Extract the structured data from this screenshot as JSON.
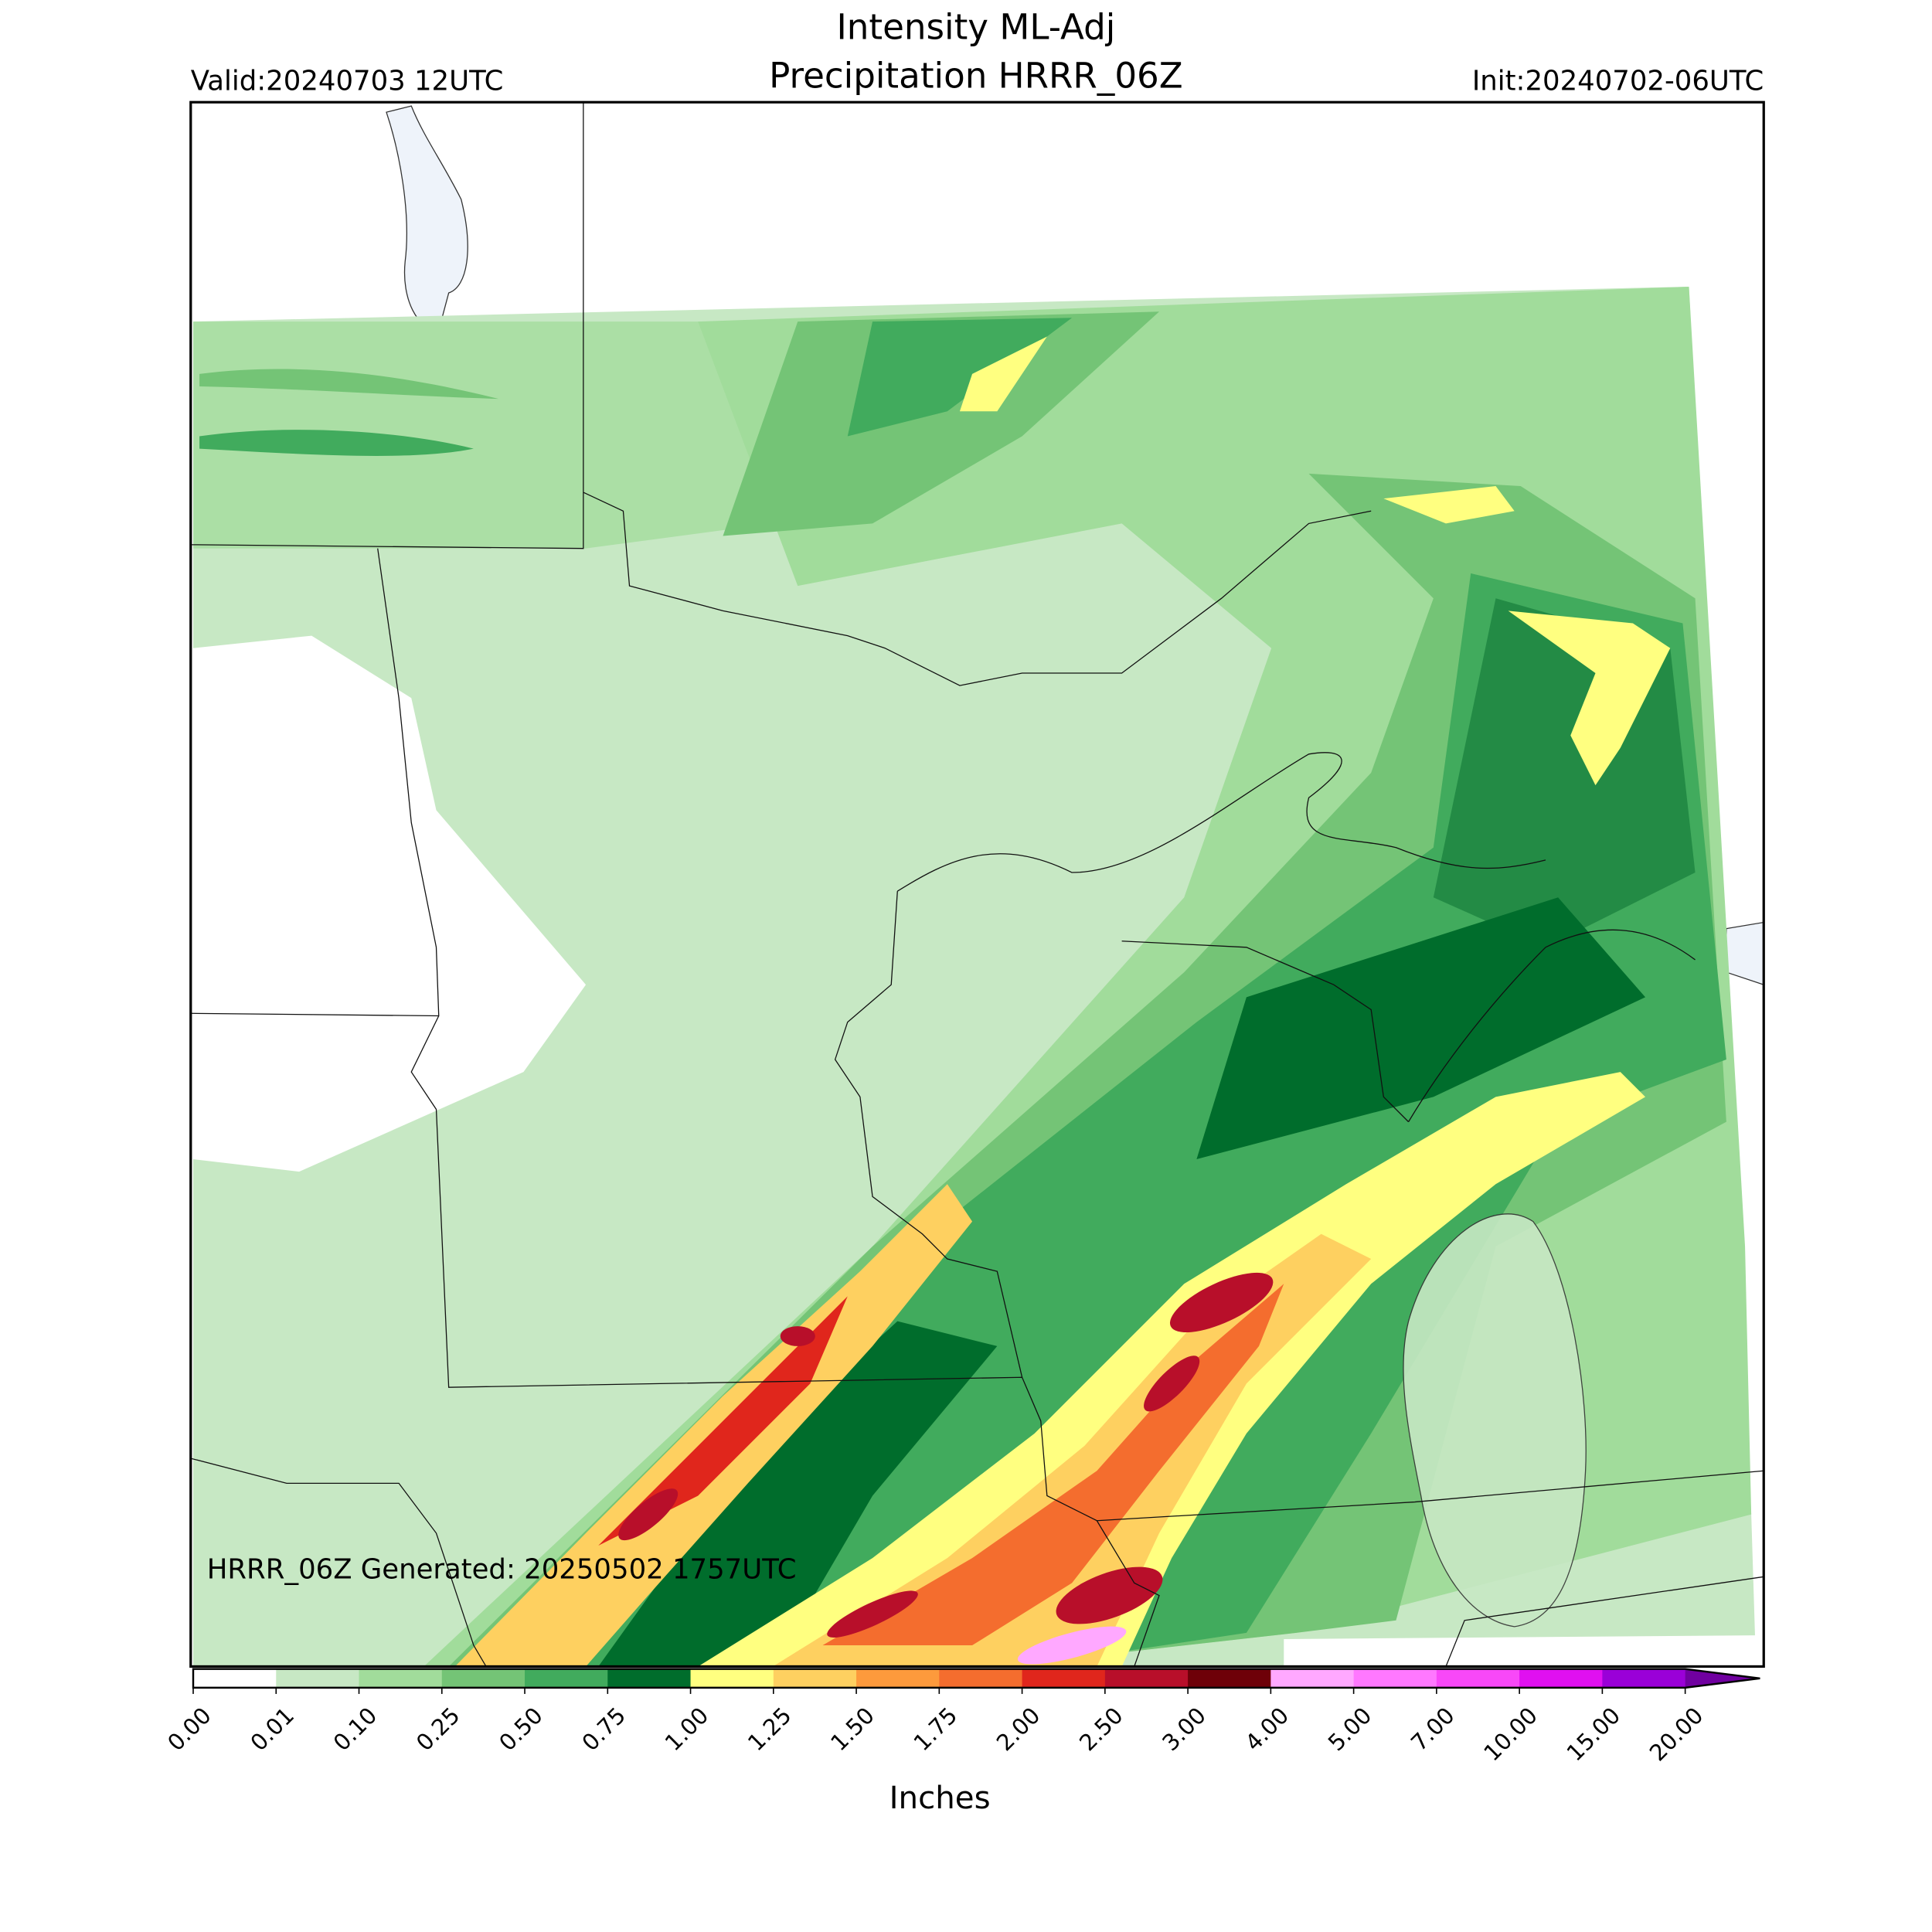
{
  "header": {
    "title": "Intensity ML-Adj",
    "subtitle": "Precipitation HRRR_06Z",
    "valid": "Valid:20240703 12UTC",
    "init": "Init:20240702-06UTC"
  },
  "footnote": "HRRR_06Z Generated: 20250502 1757UTC",
  "colorbar": {
    "label": "Inches",
    "ticks": [
      {
        "value": 0,
        "label": "0.00"
      },
      {
        "value": 0.01,
        "label": "0.01"
      },
      {
        "value": 0.1,
        "label": "0.10"
      },
      {
        "value": 0.25,
        "label": "0.25"
      },
      {
        "value": 0.5,
        "label": "0.50"
      },
      {
        "value": 0.75,
        "label": "0.75"
      },
      {
        "value": 1,
        "label": "1.00"
      },
      {
        "value": 1.25,
        "label": "1.25"
      },
      {
        "value": 1.5,
        "label": "1.50"
      },
      {
        "value": 1.75,
        "label": "1.75"
      },
      {
        "value": 2,
        "label": "2.00"
      },
      {
        "value": 2.5,
        "label": "2.50"
      },
      {
        "value": 3,
        "label": "3.00"
      },
      {
        "value": 4,
        "label": "4.00"
      },
      {
        "value": 5,
        "label": "5.00"
      },
      {
        "value": 7,
        "label": "7.00"
      },
      {
        "value": 10,
        "label": "10.00"
      },
      {
        "value": 15,
        "label": "15.00"
      },
      {
        "value": 20,
        "label": "20.00"
      }
    ],
    "colors": [
      "#ffffff",
      "#c7e8c4",
      "#a1dc9b",
      "#74c476",
      "#41ab5d",
      "#006d2c",
      "#ffff80",
      "#fed060",
      "#fd9a3c",
      "#f46d2e",
      "#e0261c",
      "#b80f2a",
      "#6e0008",
      "#ffa8ff",
      "#ff78ff",
      "#f848f8",
      "#e010f0",
      "#9a00d8",
      "#7000a0"
    ]
  }
}
